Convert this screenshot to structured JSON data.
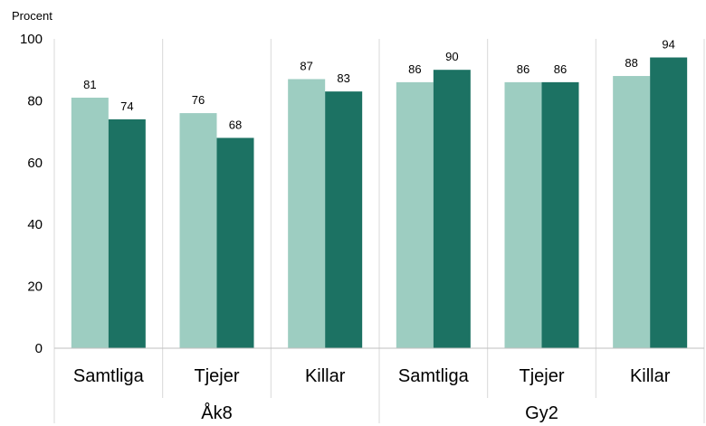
{
  "chart_data": {
    "type": "bar",
    "ylabel": "Procent",
    "ylim": [
      0,
      100
    ],
    "yticks": [
      0,
      20,
      40,
      60,
      80,
      100
    ],
    "grid": false,
    "groups": [
      {
        "label": "Åk8",
        "categories": [
          "Samtliga",
          "Tjejer",
          "Killar"
        ]
      },
      {
        "label": "Gy2",
        "categories": [
          "Samtliga",
          "Tjejer",
          "Killar"
        ]
      }
    ],
    "series": [
      {
        "color": "#9dcdc1",
        "values": [
          81,
          76,
          87,
          86,
          86,
          88
        ]
      },
      {
        "color": "#1c7263",
        "values": [
          74,
          68,
          83,
          90,
          86,
          94
        ]
      }
    ],
    "colors": {
      "axis": "#bfbfbf",
      "separator": "#d9d9d9"
    }
  }
}
